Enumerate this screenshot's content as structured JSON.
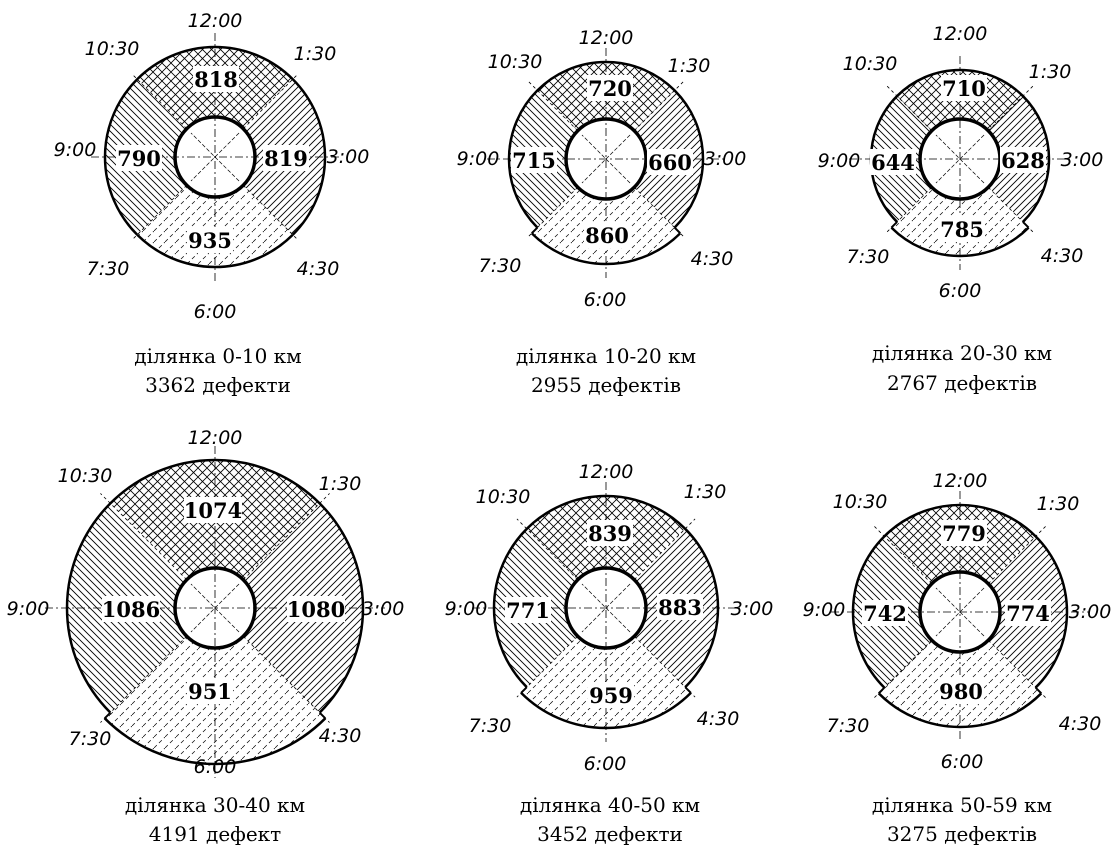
{
  "diagrams": [
    {
      "caption_line1": "ділянка 0-10 км",
      "caption_line2": "3362 дефекти",
      "top": "818",
      "left": "790",
      "right": "819",
      "bottom": "935",
      "clock": {
        "c12": "12:00",
        "c130": "1:30",
        "c3": "3:00",
        "c430": "4:30",
        "c6": "6:00",
        "c730": "7:30",
        "c9": "9:00",
        "c1030": "10:30"
      }
    },
    {
      "caption_line1": "ділянка 10-20 км",
      "caption_line2": "2955 дефектів",
      "top": "720",
      "left": "715",
      "right": "660",
      "bottom": "860",
      "clock": {
        "c12": "12:00",
        "c130": "1:30",
        "c3": "3:00",
        "c430": "4:30",
        "c6": "6:00",
        "c730": "7:30",
        "c9": "9:00",
        "c1030": "10:30"
      }
    },
    {
      "caption_line1": "ділянка 20-30 км",
      "caption_line2": "2767 дефектів",
      "top": "710",
      "left": "644",
      "right": "628",
      "bottom": "785",
      "clock": {
        "c12": "12:00",
        "c130": "1:30",
        "c3": "3:00",
        "c430": "4:30",
        "c6": "6:00",
        "c730": "7:30",
        "c9": "9:00",
        "c1030": "10:30"
      }
    },
    {
      "caption_line1": "ділянка 30-40 км",
      "caption_line2": "4191 дефект",
      "top": "1074",
      "left": "1086",
      "right": "1080",
      "bottom": "951",
      "clock": {
        "c12": "12:00",
        "c130": "1:30",
        "c3": "3:00",
        "c430": "4:30",
        "c6": "6:00",
        "c730": "7:30",
        "c9": "9:00",
        "c1030": "10:30"
      }
    },
    {
      "caption_line1": "ділянка 40-50 км",
      "caption_line2": "3452 дефекти",
      "top": "839",
      "left": "771",
      "right": "883",
      "bottom": "959",
      "clock": {
        "c12": "12:00",
        "c130": "1:30",
        "c3": "3:00",
        "c430": "4:30",
        "c6": "6:00",
        "c730": "7:30",
        "c9": "9:00",
        "c1030": "10:30"
      }
    },
    {
      "caption_line1": "ділянка 50-59 км",
      "caption_line2": "3275 дефектів",
      "top": "779",
      "left": "742",
      "right": "774",
      "bottom": "980",
      "clock": {
        "c12": "12:00",
        "c130": "1:30",
        "c3": "3:00",
        "c430": "4:30",
        "c6": "6:00",
        "c730": "7:30",
        "c9": "9:00",
        "c1030": "10:30"
      }
    }
  ]
}
